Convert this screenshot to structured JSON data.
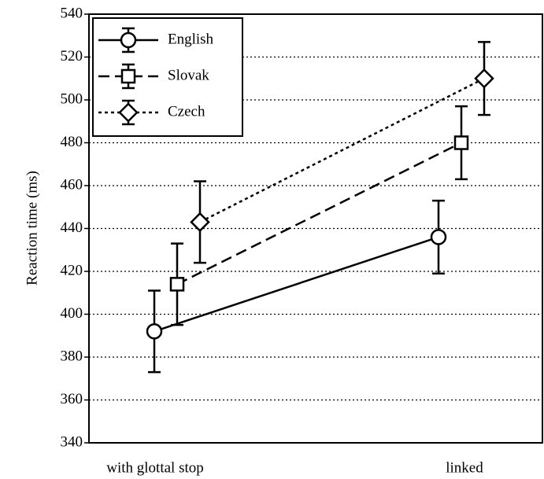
{
  "chart_data": {
    "type": "line",
    "y_label": "Reaction time (ms)",
    "categories": [
      "with glottal stop",
      "linked"
    ],
    "series": [
      {
        "name": "English",
        "color": "#000000",
        "dash": "solid",
        "marker": "circle",
        "values": [
          392,
          436
        ],
        "errors": [
          19,
          17
        ]
      },
      {
        "name": "Slovak",
        "color": "#000000",
        "dash": "dashed",
        "marker": "square",
        "values": [
          414,
          480
        ],
        "errors": [
          19,
          17
        ]
      },
      {
        "name": "Czech",
        "color": "#000000",
        "dash": "dotted",
        "marker": "diamond",
        "values": [
          443,
          510
        ],
        "errors": [
          19,
          17
        ]
      }
    ],
    "ylim": [
      340,
      540
    ],
    "yticks": [
      340,
      360,
      380,
      400,
      420,
      440,
      460,
      480,
      500,
      520,
      540
    ],
    "grid": true,
    "legend": "upper left"
  }
}
